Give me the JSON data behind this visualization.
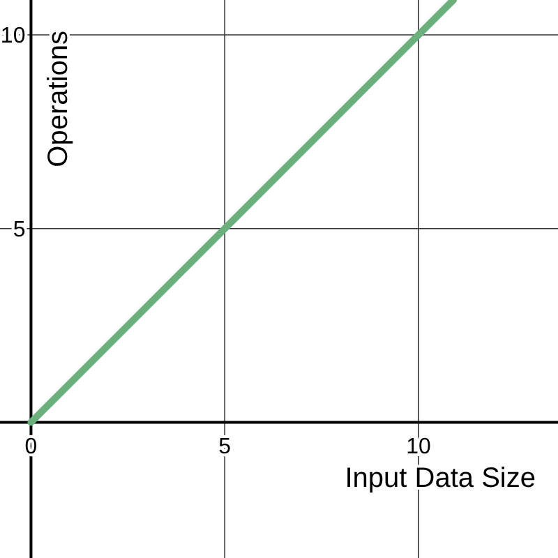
{
  "chart_data": {
    "type": "line",
    "xlabel": "Input Data Size",
    "ylabel": "Operations",
    "x": [
      0,
      10.9
    ],
    "series": [
      {
        "color": "#6aaf7c",
        "values": [
          0,
          10.9
        ]
      }
    ],
    "xlim": [
      -0.8,
      13.6
    ],
    "ylim": [
      -3.5,
      10.9
    ],
    "xticks": [
      0,
      5,
      10
    ],
    "yticks": [
      5,
      10
    ],
    "grid": true,
    "marker": "none",
    "line_style": "solid"
  }
}
